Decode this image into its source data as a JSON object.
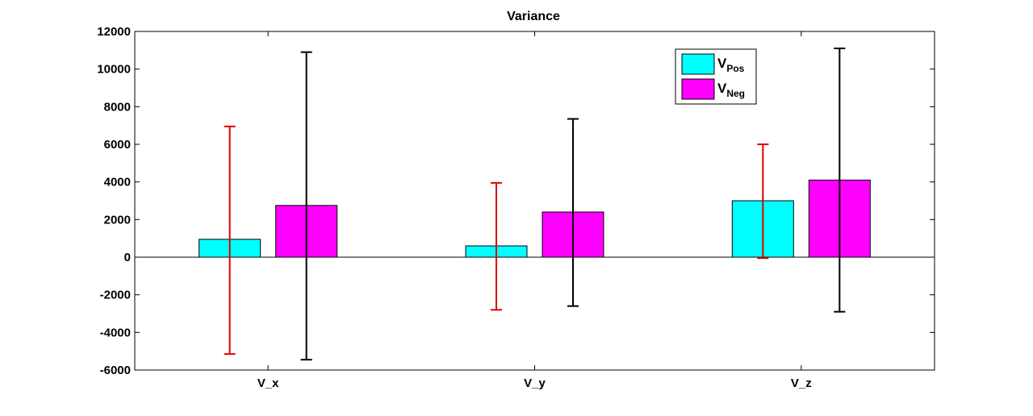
{
  "chart_data": {
    "type": "bar",
    "title": "Variance",
    "xlabel": "",
    "ylabel": "",
    "categories": [
      "V_x",
      "V_y",
      "V_z"
    ],
    "ylim": [
      -6000,
      12000
    ],
    "yticks": [
      12000,
      10000,
      8000,
      6000,
      4000,
      2000,
      0,
      -2000,
      -4000,
      -6000
    ],
    "grid": false,
    "legend_position": "top-right",
    "series": [
      {
        "name_main": "V",
        "name_sub": "Pos",
        "color": "#00ffff",
        "error_color": "#dd0000",
        "values": [
          950,
          600,
          3000
        ],
        "error_low": [
          -5150,
          -2800,
          -50
        ],
        "error_high": [
          6950,
          3950,
          6000
        ]
      },
      {
        "name_main": "V",
        "name_sub": "Neg",
        "color": "#ff00ff",
        "error_color": "#000000",
        "values": [
          2750,
          2400,
          4100
        ],
        "error_low": [
          -5450,
          -2600,
          -2900
        ],
        "error_high": [
          10900,
          7350,
          11100
        ]
      }
    ]
  }
}
